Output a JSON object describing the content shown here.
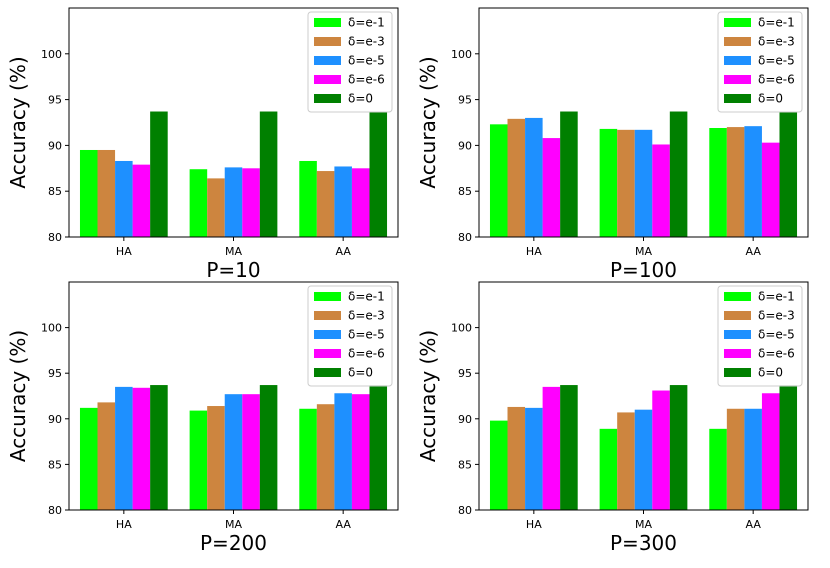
{
  "chart_data": [
    {
      "type": "bar",
      "xlabel": "P=10",
      "ylabel": "Accuracy (%)",
      "categories": [
        "HA",
        "MA",
        "AA"
      ],
      "ylim": [
        80,
        105
      ],
      "yticks": [
        80,
        85,
        90,
        95,
        100
      ],
      "legend_position": "top-right",
      "series": [
        {
          "name": "δ=e-1",
          "color": "#00ff00",
          "values": [
            89.5,
            87.4,
            88.3
          ]
        },
        {
          "name": "δ=e-3",
          "color": "#cd853f",
          "values": [
            89.5,
            86.4,
            87.2
          ]
        },
        {
          "name": "δ=e-5",
          "color": "#1e90ff",
          "values": [
            88.3,
            87.6,
            87.7
          ]
        },
        {
          "name": "δ=e-6",
          "color": "#ff00ff",
          "values": [
            87.9,
            87.5,
            87.5
          ]
        },
        {
          "name": "δ=0",
          "color": "#008000",
          "values": [
            93.7,
            93.7,
            93.7
          ]
        }
      ]
    },
    {
      "type": "bar",
      "xlabel": "P=100",
      "ylabel": "Accuracy (%)",
      "categories": [
        "HA",
        "MA",
        "AA"
      ],
      "ylim": [
        80,
        105
      ],
      "yticks": [
        80,
        85,
        90,
        95,
        100
      ],
      "legend_position": "top-right",
      "series": [
        {
          "name": "δ=e-1",
          "color": "#00ff00",
          "values": [
            92.3,
            91.8,
            91.9
          ]
        },
        {
          "name": "δ=e-3",
          "color": "#cd853f",
          "values": [
            92.9,
            91.7,
            92.0
          ]
        },
        {
          "name": "δ=e-5",
          "color": "#1e90ff",
          "values": [
            93.0,
            91.7,
            92.1
          ]
        },
        {
          "name": "δ=e-6",
          "color": "#ff00ff",
          "values": [
            90.8,
            90.1,
            90.3
          ]
        },
        {
          "name": "δ=0",
          "color": "#008000",
          "values": [
            93.7,
            93.7,
            93.7
          ]
        }
      ]
    },
    {
      "type": "bar",
      "xlabel": "P=200",
      "ylabel": "Accuracy (%)",
      "categories": [
        "HA",
        "MA",
        "AA"
      ],
      "ylim": [
        80,
        105
      ],
      "yticks": [
        80,
        85,
        90,
        95,
        100
      ],
      "legend_position": "top-right",
      "series": [
        {
          "name": "δ=e-1",
          "color": "#00ff00",
          "values": [
            91.2,
            90.9,
            91.1
          ]
        },
        {
          "name": "δ=e-3",
          "color": "#cd853f",
          "values": [
            91.8,
            91.4,
            91.6
          ]
        },
        {
          "name": "δ=e-5",
          "color": "#1e90ff",
          "values": [
            93.5,
            92.7,
            92.8
          ]
        },
        {
          "name": "δ=e-6",
          "color": "#ff00ff",
          "values": [
            93.4,
            92.7,
            92.7
          ]
        },
        {
          "name": "δ=0",
          "color": "#008000",
          "values": [
            93.7,
            93.7,
            93.7
          ]
        }
      ]
    },
    {
      "type": "bar",
      "xlabel": "P=300",
      "ylabel": "Accuracy (%)",
      "categories": [
        "HA",
        "MA",
        "AA"
      ],
      "ylim": [
        80,
        105
      ],
      "yticks": [
        80,
        85,
        90,
        95,
        100
      ],
      "legend_position": "top-right",
      "series": [
        {
          "name": "δ=e-1",
          "color": "#00ff00",
          "values": [
            89.8,
            88.9,
            88.9
          ]
        },
        {
          "name": "δ=e-3",
          "color": "#cd853f",
          "values": [
            91.3,
            90.7,
            91.1
          ]
        },
        {
          "name": "δ=e-5",
          "color": "#1e90ff",
          "values": [
            91.2,
            91.0,
            91.1
          ]
        },
        {
          "name": "δ=e-6",
          "color": "#ff00ff",
          "values": [
            93.5,
            93.1,
            92.8
          ]
        },
        {
          "name": "δ=0",
          "color": "#008000",
          "values": [
            93.7,
            93.7,
            93.7
          ]
        }
      ]
    }
  ]
}
